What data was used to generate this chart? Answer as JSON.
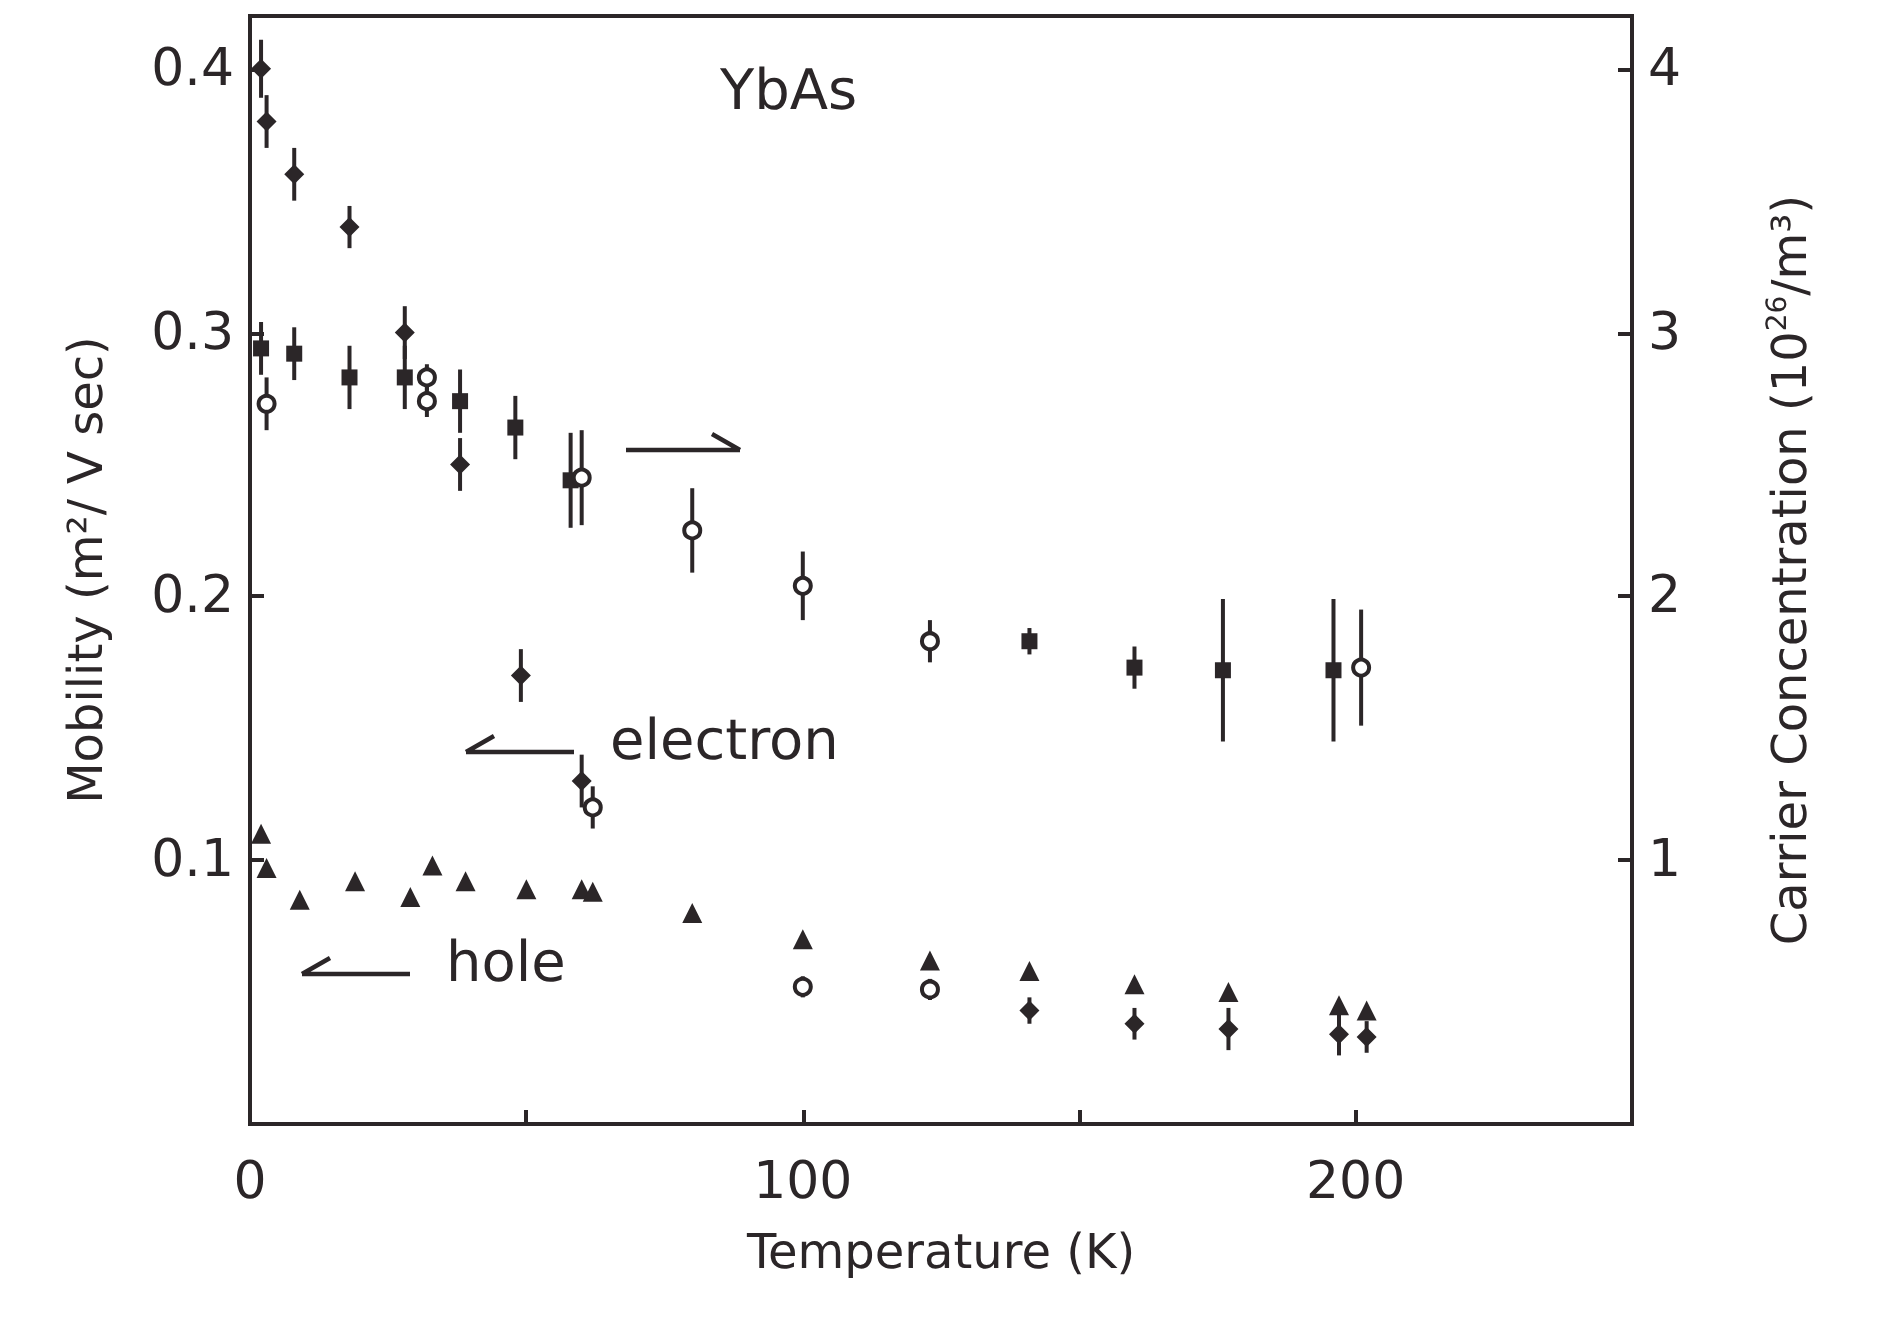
{
  "chart_data": {
    "type": "scatter",
    "title": "YbAs",
    "xlabel": "Temperature (K)",
    "ylabel": "Mobility (m²/ V sec)",
    "y2label": "Carrier Concentration (10$^{26}$/m³)",
    "xlim": [
      0,
      250
    ],
    "xticks": [
      0,
      {
        "value": 50,
        "label": null
      },
      100,
      {
        "value": 150,
        "label": null
      },
      200
    ],
    "ylim": [
      0,
      0.42
    ],
    "yticks": [
      0.1,
      0.2,
      0.3,
      0.4
    ],
    "y2lim": [
      0,
      4.2
    ],
    "y2ticks": [
      1,
      2,
      3,
      4
    ],
    "grid": false,
    "series": [
      {
        "marker": "diamond",
        "color": "#2b2628",
        "x": [
          2,
          3,
          8,
          18,
          28,
          38,
          49,
          60,
          141,
          160,
          177,
          197,
          202
        ],
        "values": [
          0.4,
          0.38,
          0.36,
          0.34,
          0.3,
          0.25,
          0.17,
          0.13,
          0.043,
          0.038,
          0.036,
          0.034,
          0.033
        ],
        "errors": [
          0.011,
          0.01,
          0.01,
          0.008,
          0.01,
          0.01,
          0.01,
          0.01,
          0.005,
          0.006,
          0.008,
          0.008,
          0.006
        ]
      },
      {
        "marker": "circle",
        "color": "#2b2628",
        "x": [
          62,
          100,
          123
        ],
        "values": [
          0.12,
          0.052,
          0.051
        ],
        "errors": [
          0.008,
          0.004,
          0.004
        ]
      },
      {
        "marker": "triangle",
        "color": "#2b2628",
        "x": [
          2,
          3,
          9,
          19,
          29,
          33,
          39,
          50,
          60,
          62,
          80,
          100,
          123,
          141,
          160,
          177,
          197,
          202
        ],
        "values": [
          0.11,
          0.097,
          0.085,
          0.092,
          0.086,
          0.098,
          0.092,
          0.089,
          0.089,
          0.088,
          0.08,
          0.07,
          0.062,
          0.058,
          0.053,
          0.05,
          0.045,
          0.043
        ]
      },
      {
        "marker": "square",
        "color": "#2b2628",
        "axis": "y2",
        "x": [
          2,
          8,
          18,
          28,
          38,
          48,
          58,
          141,
          160,
          176,
          196
        ],
        "values": [
          2.94,
          2.92,
          2.83,
          2.83,
          2.74,
          2.64,
          2.44,
          1.83,
          1.73,
          1.72,
          1.72
        ],
        "errors": [
          0.1,
          0.1,
          0.12,
          0.12,
          0.12,
          0.12,
          0.18,
          0.05,
          0.08,
          0.27,
          0.27
        ]
      },
      {
        "marker": "circle",
        "color": "#2b2628",
        "axis": "y2",
        "x": [
          3,
          32,
          32,
          60,
          80,
          100,
          123,
          201
        ],
        "values": [
          2.73,
          2.83,
          2.74,
          2.45,
          2.25,
          2.04,
          1.83,
          1.73
        ],
        "errors": [
          0.1,
          0.05,
          0.06,
          0.18,
          0.16,
          0.13,
          0.08,
          0.22
        ]
      }
    ],
    "annotations": [
      "electron",
      "hole"
    ]
  }
}
